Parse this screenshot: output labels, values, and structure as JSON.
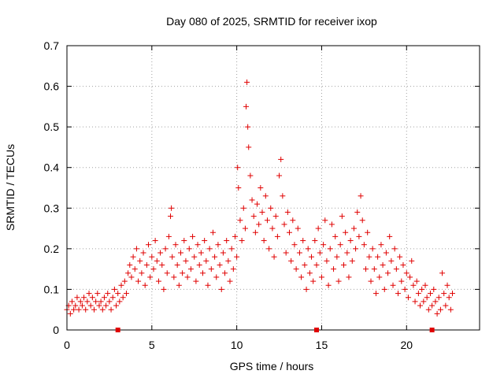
{
  "chart_data": {
    "type": "scatter",
    "title": "Day 080 of 2025, SRMTID for receiver ixop",
    "xlabel": "GPS time / hours",
    "ylabel": "SRMTID / TECUs",
    "xlim": [
      0,
      24.3
    ],
    "ylim": [
      0,
      0.7
    ],
    "xticks": [
      0,
      5,
      10,
      15,
      20
    ],
    "xtick_labels": [
      "0",
      "5",
      "10",
      "15",
      "20"
    ],
    "yticks": [
      0,
      0.1,
      0.2,
      0.3,
      0.4,
      0.5,
      0.6,
      0.7
    ],
    "ytick_labels": [
      "0",
      "0.1",
      "0.2",
      "0.3",
      "0.4",
      "0.5",
      "0.6",
      "0.7"
    ],
    "grid": true,
    "marker": "plus",
    "color": "#e00000",
    "axis_markers_x": [
      3.0,
      14.7,
      21.5
    ],
    "series": [
      {
        "name": "SRMTID",
        "points": [
          [
            0.0,
            0.05
          ],
          [
            0.1,
            0.06
          ],
          [
            0.2,
            0.04
          ],
          [
            0.3,
            0.07
          ],
          [
            0.4,
            0.05
          ],
          [
            0.5,
            0.06
          ],
          [
            0.6,
            0.08
          ],
          [
            0.7,
            0.05
          ],
          [
            0.8,
            0.07
          ],
          [
            0.9,
            0.06
          ],
          [
            1.0,
            0.08
          ],
          [
            1.1,
            0.05
          ],
          [
            1.2,
            0.07
          ],
          [
            1.3,
            0.09
          ],
          [
            1.4,
            0.06
          ],
          [
            1.5,
            0.08
          ],
          [
            1.6,
            0.05
          ],
          [
            1.7,
            0.07
          ],
          [
            1.8,
            0.09
          ],
          [
            1.9,
            0.06
          ],
          [
            2.0,
            0.07
          ],
          [
            2.1,
            0.05
          ],
          [
            2.2,
            0.08
          ],
          [
            2.3,
            0.06
          ],
          [
            2.4,
            0.09
          ],
          [
            2.5,
            0.07
          ],
          [
            2.6,
            0.05
          ],
          [
            2.7,
            0.08
          ],
          [
            2.8,
            0.1
          ],
          [
            2.9,
            0.06
          ],
          [
            3.0,
            0.09
          ],
          [
            3.1,
            0.07
          ],
          [
            3.2,
            0.11
          ],
          [
            3.3,
            0.08
          ],
          [
            3.4,
            0.12
          ],
          [
            3.5,
            0.09
          ],
          [
            3.6,
            0.14
          ],
          [
            3.7,
            0.16
          ],
          [
            3.8,
            0.13
          ],
          [
            3.9,
            0.18
          ],
          [
            4.0,
            0.15
          ],
          [
            4.1,
            0.2
          ],
          [
            4.2,
            0.12
          ],
          [
            4.3,
            0.17
          ],
          [
            4.4,
            0.14
          ],
          [
            4.5,
            0.19
          ],
          [
            4.6,
            0.11
          ],
          [
            4.7,
            0.16
          ],
          [
            4.8,
            0.21
          ],
          [
            4.9,
            0.13
          ],
          [
            5.0,
            0.18
          ],
          [
            5.1,
            0.15
          ],
          [
            5.2,
            0.22
          ],
          [
            5.3,
            0.17
          ],
          [
            5.4,
            0.12
          ],
          [
            5.5,
            0.19
          ],
          [
            5.6,
            0.16
          ],
          [
            5.7,
            0.1
          ],
          [
            5.8,
            0.2
          ],
          [
            5.9,
            0.14
          ],
          [
            6.0,
            0.23
          ],
          [
            6.1,
            0.28
          ],
          [
            6.15,
            0.3
          ],
          [
            6.2,
            0.18
          ],
          [
            6.3,
            0.13
          ],
          [
            6.4,
            0.21
          ],
          [
            6.5,
            0.16
          ],
          [
            6.6,
            0.11
          ],
          [
            6.7,
            0.19
          ],
          [
            6.8,
            0.14
          ],
          [
            6.9,
            0.22
          ],
          [
            7.0,
            0.17
          ],
          [
            7.1,
            0.13
          ],
          [
            7.2,
            0.2
          ],
          [
            7.3,
            0.15
          ],
          [
            7.4,
            0.23
          ],
          [
            7.5,
            0.18
          ],
          [
            7.6,
            0.12
          ],
          [
            7.7,
            0.21
          ],
          [
            7.8,
            0.16
          ],
          [
            7.9,
            0.19
          ],
          [
            8.0,
            0.14
          ],
          [
            8.1,
            0.22
          ],
          [
            8.2,
            0.17
          ],
          [
            8.3,
            0.11
          ],
          [
            8.4,
            0.2
          ],
          [
            8.5,
            0.15
          ],
          [
            8.6,
            0.24
          ],
          [
            8.7,
            0.18
          ],
          [
            8.8,
            0.13
          ],
          [
            8.9,
            0.21
          ],
          [
            9.0,
            0.16
          ],
          [
            9.1,
            0.1
          ],
          [
            9.2,
            0.19
          ],
          [
            9.3,
            0.14
          ],
          [
            9.4,
            0.22
          ],
          [
            9.5,
            0.17
          ],
          [
            9.6,
            0.12
          ],
          [
            9.7,
            0.2
          ],
          [
            9.8,
            0.15
          ],
          [
            9.9,
            0.23
          ],
          [
            10.0,
            0.18
          ],
          [
            10.05,
            0.4
          ],
          [
            10.1,
            0.35
          ],
          [
            10.2,
            0.27
          ],
          [
            10.3,
            0.22
          ],
          [
            10.4,
            0.3
          ],
          [
            10.5,
            0.25
          ],
          [
            10.55,
            0.55
          ],
          [
            10.6,
            0.61
          ],
          [
            10.65,
            0.5
          ],
          [
            10.7,
            0.45
          ],
          [
            10.8,
            0.38
          ],
          [
            10.9,
            0.32
          ],
          [
            11.0,
            0.28
          ],
          [
            11.1,
            0.24
          ],
          [
            11.2,
            0.31
          ],
          [
            11.3,
            0.26
          ],
          [
            11.4,
            0.35
          ],
          [
            11.5,
            0.29
          ],
          [
            11.6,
            0.22
          ],
          [
            11.7,
            0.33
          ],
          [
            11.8,
            0.27
          ],
          [
            11.9,
            0.2
          ],
          [
            12.0,
            0.3
          ],
          [
            12.1,
            0.25
          ],
          [
            12.2,
            0.18
          ],
          [
            12.3,
            0.28
          ],
          [
            12.4,
            0.23
          ],
          [
            12.5,
            0.38
          ],
          [
            12.6,
            0.42
          ],
          [
            12.7,
            0.33
          ],
          [
            12.8,
            0.26
          ],
          [
            12.9,
            0.19
          ],
          [
            13.0,
            0.29
          ],
          [
            13.1,
            0.24
          ],
          [
            13.2,
            0.17
          ],
          [
            13.3,
            0.27
          ],
          [
            13.4,
            0.21
          ],
          [
            13.5,
            0.15
          ],
          [
            13.6,
            0.25
          ],
          [
            13.7,
            0.19
          ],
          [
            13.8,
            0.13
          ],
          [
            13.9,
            0.22
          ],
          [
            14.0,
            0.16
          ],
          [
            14.1,
            0.1
          ],
          [
            14.2,
            0.2
          ],
          [
            14.3,
            0.14
          ],
          [
            14.4,
            0.18
          ],
          [
            14.5,
            0.12
          ],
          [
            14.6,
            0.22
          ],
          [
            14.7,
            0.16
          ],
          [
            14.8,
            0.25
          ],
          [
            14.9,
            0.19
          ],
          [
            15.0,
            0.13
          ],
          [
            15.1,
            0.21
          ],
          [
            15.2,
            0.27
          ],
          [
            15.3,
            0.17
          ],
          [
            15.4,
            0.11
          ],
          [
            15.5,
            0.2
          ],
          [
            15.6,
            0.26
          ],
          [
            15.7,
            0.15
          ],
          [
            15.8,
            0.23
          ],
          [
            15.9,
            0.18
          ],
          [
            16.0,
            0.12
          ],
          [
            16.1,
            0.21
          ],
          [
            16.2,
            0.28
          ],
          [
            16.3,
            0.16
          ],
          [
            16.4,
            0.24
          ],
          [
            16.5,
            0.19
          ],
          [
            16.6,
            0.13
          ],
          [
            16.7,
            0.22
          ],
          [
            16.8,
            0.17
          ],
          [
            16.9,
            0.25
          ],
          [
            17.0,
            0.2
          ],
          [
            17.1,
            0.29
          ],
          [
            17.2,
            0.23
          ],
          [
            17.3,
            0.33
          ],
          [
            17.4,
            0.27
          ],
          [
            17.5,
            0.21
          ],
          [
            17.6,
            0.15
          ],
          [
            17.7,
            0.24
          ],
          [
            17.8,
            0.18
          ],
          [
            17.9,
            0.12
          ],
          [
            18.0,
            0.2
          ],
          [
            18.1,
            0.15
          ],
          [
            18.2,
            0.09
          ],
          [
            18.3,
            0.18
          ],
          [
            18.4,
            0.13
          ],
          [
            18.5,
            0.21
          ],
          [
            18.6,
            0.16
          ],
          [
            18.7,
            0.1
          ],
          [
            18.8,
            0.19
          ],
          [
            18.9,
            0.14
          ],
          [
            19.0,
            0.23
          ],
          [
            19.1,
            0.17
          ],
          [
            19.2,
            0.11
          ],
          [
            19.3,
            0.2
          ],
          [
            19.4,
            0.15
          ],
          [
            19.5,
            0.09
          ],
          [
            19.6,
            0.18
          ],
          [
            19.7,
            0.12
          ],
          [
            19.8,
            0.16
          ],
          [
            19.9,
            0.1
          ],
          [
            20.0,
            0.14
          ],
          [
            20.1,
            0.08
          ],
          [
            20.2,
            0.13
          ],
          [
            20.3,
            0.17
          ],
          [
            20.4,
            0.11
          ],
          [
            20.5,
            0.07
          ],
          [
            20.6,
            0.12
          ],
          [
            20.7,
            0.09
          ],
          [
            20.8,
            0.06
          ],
          [
            20.9,
            0.1
          ],
          [
            21.0,
            0.07
          ],
          [
            21.1,
            0.11
          ],
          [
            21.2,
            0.08
          ],
          [
            21.3,
            0.05
          ],
          [
            21.4,
            0.09
          ],
          [
            21.5,
            0.06
          ],
          [
            21.6,
            0.1
          ],
          [
            21.7,
            0.07
          ],
          [
            21.8,
            0.04
          ],
          [
            21.9,
            0.08
          ],
          [
            22.0,
            0.05
          ],
          [
            22.1,
            0.14
          ],
          [
            22.2,
            0.09
          ],
          [
            22.3,
            0.06
          ],
          [
            22.4,
            0.11
          ],
          [
            22.5,
            0.08
          ],
          [
            22.6,
            0.05
          ],
          [
            22.7,
            0.09
          ]
        ]
      }
    ]
  }
}
